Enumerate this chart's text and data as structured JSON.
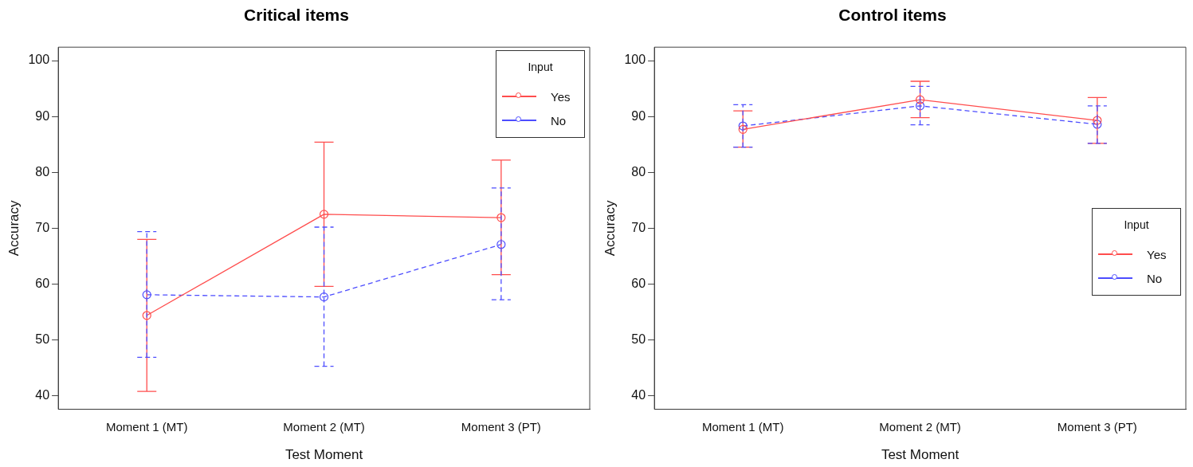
{
  "chart_data": [
    {
      "type": "line",
      "title": "Critical items",
      "xlabel": "Test Moment",
      "ylabel": "Accuracy",
      "legend_title": "Input",
      "categories": [
        "Moment 1 (MT)",
        "Moment 2 (MT)",
        "Moment 3 (PT)"
      ],
      "series": [
        {
          "name": "Yes",
          "color": "#ff4d4d",
          "line_style": "solid",
          "values": [
            54.4,
            72.5,
            71.9
          ],
          "errors": [
            [
              40.8,
              68.0
            ],
            [
              59.6,
              85.4
            ],
            [
              61.7,
              82.2
            ]
          ]
        },
        {
          "name": "No",
          "color": "#4d4dff",
          "line_style": "dashed",
          "values": [
            58.1,
            57.7,
            67.1
          ],
          "errors": [
            [
              46.9,
              69.4
            ],
            [
              45.3,
              70.2
            ],
            [
              57.2,
              77.2
            ]
          ]
        }
      ],
      "ylim": [
        37.6,
        102.4
      ],
      "yticks": [
        40,
        50,
        60,
        70,
        80,
        90,
        100
      ],
      "grid": false,
      "legend": "top right",
      "marker": "circle"
    },
    {
      "type": "line",
      "title": "Control items",
      "xlabel": "Test Moment",
      "ylabel": "Accuracy",
      "legend_title": "Input",
      "categories": [
        "Moment 1 (MT)",
        "Moment 2 (MT)",
        "Moment 3 (PT)"
      ],
      "series": [
        {
          "name": "Yes",
          "color": "#ff4d4d",
          "line_style": "solid",
          "values": [
            87.7,
            93.0,
            89.3
          ],
          "errors": [
            [
              84.5,
              91.0
            ],
            [
              89.8,
              96.3
            ],
            [
              85.2,
              93.4
            ]
          ]
        },
        {
          "name": "No",
          "color": "#4d4dff",
          "line_style": "dashed",
          "values": [
            88.3,
            91.9,
            88.6
          ],
          "errors": [
            [
              84.5,
              92.1
            ],
            [
              88.5,
              95.4
            ],
            [
              85.2,
              91.9
            ]
          ]
        }
      ],
      "ylim": [
        37.6,
        102.4
      ],
      "yticks": [
        40,
        50,
        60,
        70,
        80,
        90,
        100
      ],
      "grid": false,
      "legend": "right",
      "marker": "circle"
    }
  ]
}
